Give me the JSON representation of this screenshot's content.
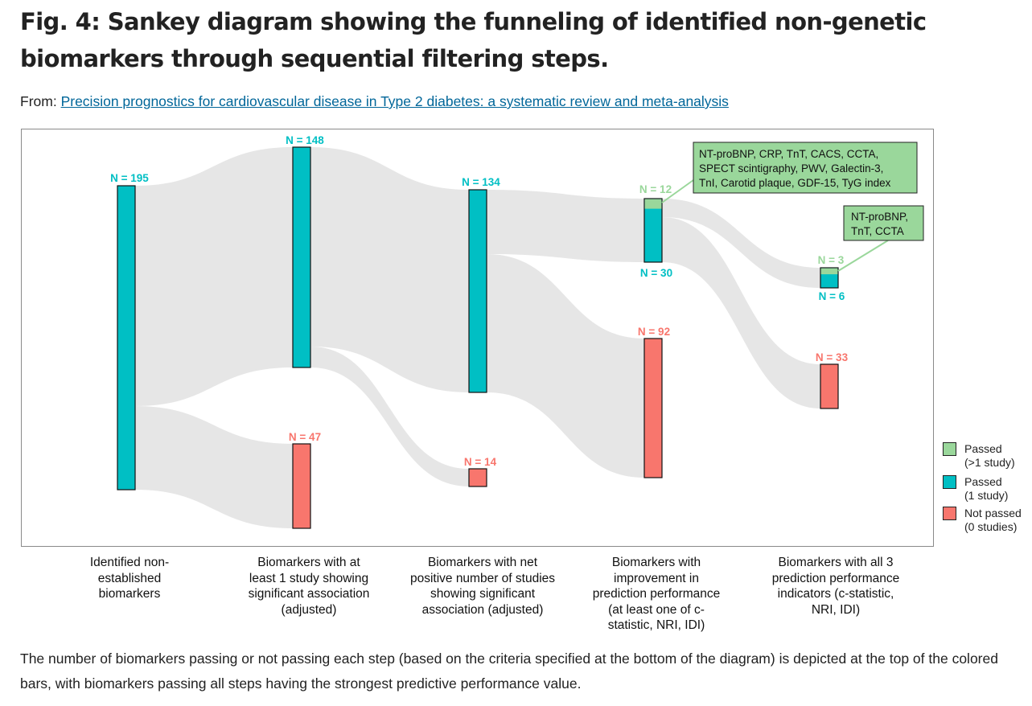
{
  "title": "Fig. 4: Sankey diagram showing the funneling of identified non-genetic biomarkers through sequential filtering steps.",
  "from_label": "From:",
  "from_link": "Precision prognostics for cardiovascular disease in Type 2 diabetes: a systematic review and meta-analysis",
  "colors": {
    "passed_multi": "#9ad79b",
    "passed_one": "#00bfc4",
    "not_passed": "#f8766d",
    "flow": "#e6e6e6"
  },
  "legend": [
    {
      "key": "passed_multi",
      "label": "Passed\n(>1 study)"
    },
    {
      "key": "passed_one",
      "label": "Passed\n(1 study)"
    },
    {
      "key": "not_passed",
      "label": "Not passed\n(0 studies)"
    }
  ],
  "nodes": [
    {
      "id": "s1",
      "label": "N = 195",
      "value": 195,
      "color": "passed_one"
    },
    {
      "id": "s2_pass",
      "label": "N = 148",
      "value": 148,
      "color": "passed_one"
    },
    {
      "id": "s2_fail",
      "label": "N = 47",
      "value": 47,
      "color": "not_passed"
    },
    {
      "id": "s3_pass",
      "label": "N = 134",
      "value": 134,
      "color": "passed_one"
    },
    {
      "id": "s3_fail",
      "label": "N = 14",
      "value": 14,
      "color": "not_passed"
    },
    {
      "id": "s4_pass",
      "label_multi": "N = 12",
      "label_one": "N = 30",
      "value_multi": 12,
      "value_one": 30,
      "color": "passed_one"
    },
    {
      "id": "s4_fail",
      "label": "N = 92",
      "value": 92,
      "color": "not_passed"
    },
    {
      "id": "s5_pass",
      "label_multi": "N = 3",
      "label_one": "N = 6",
      "value_multi": 3,
      "value_one": 6,
      "color": "passed_one"
    },
    {
      "id": "s5_fail",
      "label": "N = 33",
      "value": 33,
      "color": "not_passed"
    }
  ],
  "callouts": [
    {
      "lines": [
        "NT-proBNP, CRP, TnT, CACS, CCTA,",
        "SPECT scintigraphy, PWV, Galectin-3,",
        "TnI, Carotid plaque, GDF-15, TyG index"
      ]
    },
    {
      "lines": [
        "NT-proBNP,",
        "TnT, CCTA"
      ]
    }
  ],
  "steps": [
    "Identified non-\nestablished\nbiomarkers",
    "Biomarkers with at\nleast 1 study showing\nsignificant association\n(adjusted)",
    "Biomarkers with net\npositive number of studies\nshowing significant\nassociation (adjusted)",
    "Biomarkers with\nimprovement in\nprediction performance\n(at least one of c-\nstatistic, NRI, IDI)",
    "Biomarkers with all 3\nprediction performance\nindicators (c-statistic,\nNRI, IDI)"
  ],
  "caption": "The number of biomarkers passing or not passing each step (based on the criteria specified at the bottom of the diagram) is depicted at the top of the colored bars, with biomarkers passing all steps having the strongest predictive performance value."
}
